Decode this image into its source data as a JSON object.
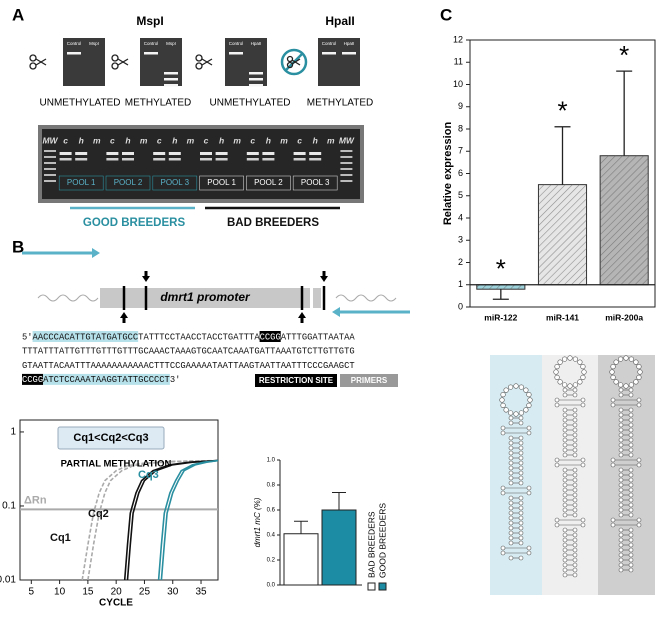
{
  "panel_labels": [
    "A",
    "B",
    "C"
  ],
  "enzyme_assay": {
    "enzymes": [
      "MspI",
      "HpaII"
    ],
    "gels": [
      [
        "Control",
        "MspI"
      ],
      [
        "Control",
        "MspI"
      ],
      [
        "Control",
        "HpaII"
      ],
      [
        "Control",
        "HpaII"
      ]
    ],
    "states": [
      "UNMETHYLATED",
      "METHYLATED",
      "UNMETHYLATED",
      "METHYLATED"
    ]
  },
  "pool_gel": {
    "lanes": [
      "MW",
      "c",
      "h",
      "m",
      "c",
      "h",
      "m",
      "c",
      "h",
      "m",
      "c",
      "h",
      "m",
      "c",
      "h",
      "m",
      "c",
      "h",
      "m",
      "MW"
    ],
    "pools": [
      "POOL 1",
      "POOL 2",
      "POOL 3",
      "POOL 1",
      "POOL 2",
      "POOL 3"
    ],
    "groups": [
      "GOOD BREEDERS",
      "BAD BREEDERS"
    ]
  },
  "promoter": {
    "label": "dmrt1 promoter",
    "sequence": [
      [
        {
          "text": "5'"
        },
        {
          "text": "AACCCACATTGTATGATGCC",
          "kind": "primer"
        },
        {
          "text": "TATTTCCTAACCTACCTGATTTA"
        },
        {
          "text": "CCGG",
          "kind": "site"
        },
        {
          "text": "ATTTGGATTAATAA"
        }
      ],
      [
        {
          "text": "TTTATTTATTGTTTGTTTGTTTGCAAACTAAAGTGCAATCAAATGATTAAATGTCTTGTTGTG"
        }
      ],
      [
        {
          "text": "GTAATTACAATTTAAAAAAAAAAACTTTCCGAAAAATAATTAAGTAATTAATTTCCCGAAGCT"
        }
      ],
      [
        {
          "text": "CCGG",
          "kind": "site"
        },
        {
          "text": "ATCTCCAAATAAGGTATTGCCCCT",
          "kind": "primer"
        },
        {
          "text": "3'"
        }
      ]
    ],
    "legend": [
      {
        "text": "RESTRICTION SITE",
        "kind": "site"
      },
      {
        "text": "PRIMERS",
        "kind": "primer"
      }
    ]
  },
  "chart_data": [
    {
      "type": "bar",
      "ylabel": "Relative expression",
      "categories": [
        "miR-122",
        "miR-141",
        "miR-200a"
      ],
      "values": [
        0.8,
        5.5,
        6.8
      ],
      "errors": [
        0.45,
        2.6,
        3.8
      ],
      "colors": [
        "#9fd3dc",
        "#e6e6e6",
        "#b5b5b5"
      ],
      "annotations": [
        "*",
        "*",
        "*"
      ],
      "reference": 1,
      "ylim": [
        0,
        12
      ],
      "yticks": [
        0,
        1,
        2,
        3,
        4,
        5,
        6,
        7,
        8,
        9,
        10,
        11,
        12
      ]
    },
    {
      "type": "line",
      "log_y": true,
      "xlabel": "CYCLE",
      "ylabel": "ΔRn",
      "title": "Cq1<Cq2<Cq3",
      "subtitle": "PARTIAL METHYLATION",
      "annotations": [
        "Cq1",
        "Cq2",
        "Cq3"
      ],
      "threshold": 0.09,
      "xlim": [
        3,
        38
      ],
      "xticks": [
        5,
        10,
        15,
        20,
        25,
        30,
        35
      ],
      "ylim": [
        0.01,
        1.45
      ],
      "yticks": [
        0.01,
        0.1,
        1
      ],
      "series": [
        {
          "color": "#aaaaaa",
          "dash": true,
          "x": [
            14,
            15,
            16,
            17,
            18,
            20,
            22,
            25,
            30,
            38
          ],
          "values": [
            0.01,
            0.03,
            0.08,
            0.15,
            0.22,
            0.3,
            0.35,
            0.38,
            0.4,
            0.41
          ]
        },
        {
          "color": "#aaaaaa",
          "dash": true,
          "x": [
            15,
            16,
            17,
            18,
            19,
            21,
            23,
            26,
            31,
            38
          ],
          "values": [
            0.01,
            0.03,
            0.08,
            0.15,
            0.22,
            0.3,
            0.35,
            0.38,
            0.4,
            0.41
          ]
        },
        {
          "color": "#111111",
          "dash": false,
          "x": [
            21.5,
            22,
            22.5,
            23.5,
            24.5,
            26.5,
            29.5,
            33,
            38
          ],
          "values": [
            0.01,
            0.03,
            0.08,
            0.15,
            0.22,
            0.3,
            0.36,
            0.39,
            0.41
          ]
        },
        {
          "color": "#111111",
          "dash": false,
          "x": [
            22,
            22.5,
            23,
            24,
            25,
            27,
            30,
            33.5,
            38
          ],
          "values": [
            0.01,
            0.03,
            0.08,
            0.15,
            0.22,
            0.3,
            0.36,
            0.39,
            0.41
          ]
        },
        {
          "color": "#2a8fa0",
          "dash": false,
          "x": [
            27.5,
            28,
            28.5,
            29.5,
            30.5,
            31.5,
            33.5,
            35.5,
            38
          ],
          "values": [
            0.01,
            0.03,
            0.08,
            0.15,
            0.22,
            0.3,
            0.36,
            0.39,
            0.41
          ]
        },
        {
          "color": "#2a8fa0",
          "dash": false,
          "x": [
            28,
            28.5,
            29,
            30,
            31,
            32,
            34,
            36,
            38
          ],
          "values": [
            0.01,
            0.03,
            0.08,
            0.15,
            0.22,
            0.3,
            0.36,
            0.39,
            0.41
          ]
        }
      ]
    },
    {
      "type": "bar",
      "ylabel": "dmrt1 mC (%)",
      "series": [
        {
          "name": "BAD BREEDERS",
          "color": "#ffffff",
          "values": [
            0.41
          ],
          "errors": [
            0.1
          ]
        },
        {
          "name": "GOOD BREEDERS",
          "color": "#1b8ca3",
          "values": [
            0.6
          ],
          "errors": [
            0.14
          ]
        }
      ],
      "ylim": [
        0,
        1
      ],
      "yticks": [
        {
          "value": 0,
          "label": "0.0"
        },
        {
          "value": 0.2,
          "label": "0.2"
        },
        {
          "value": 0.4,
          "label": "0.4"
        },
        {
          "value": 0.6,
          "label": "0.6"
        },
        {
          "value": 0.8,
          "label": "0.8"
        },
        {
          "value": 1,
          "label": "1.0"
        }
      ]
    }
  ]
}
